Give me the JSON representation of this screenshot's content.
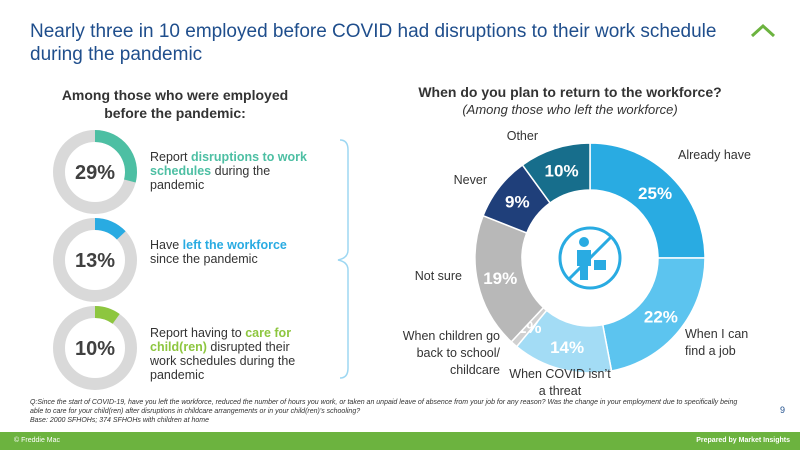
{
  "header": {
    "title": "Nearly three in 10 employed before COVID had disruptions to their work schedule during the pandemic"
  },
  "left_panel": {
    "heading": "Among those who were employed before the pandemic:"
  },
  "chart_data": [
    {
      "type": "donut",
      "values": [
        29
      ],
      "value_labels": [
        "29%"
      ],
      "color": "#4dbfa3",
      "rest_color": "#d9d9d9",
      "caption": {
        "before": "Report ",
        "highlight": "disruptions to work schedules",
        "after": " during the pandemic"
      }
    },
    {
      "type": "donut",
      "values": [
        13
      ],
      "value_labels": [
        "13%"
      ],
      "color": "#29abe2",
      "rest_color": "#d9d9d9",
      "caption": {
        "before": "Have ",
        "highlight": "left the workforce",
        "after": " since the pandemic"
      }
    },
    {
      "type": "donut",
      "values": [
        10
      ],
      "value_labels": [
        "10%"
      ],
      "color": "#8dc63f",
      "rest_color": "#d9d9d9",
      "caption": {
        "before": "Report having to ",
        "highlight": "care for child(ren)",
        "after": " disrupted their work schedules during the pandemic"
      }
    },
    {
      "type": "pie",
      "title": "When do you plan to return to the workforce?",
      "subtitle": "(Among those who left the workforce)",
      "categories": [
        "Already have",
        "When I can find a job",
        "When COVID isn’t a threat",
        "When children go back to school/ childcare",
        "Not sure",
        "Never",
        "Other"
      ],
      "values": [
        25,
        22,
        14,
        1,
        19,
        9,
        10
      ],
      "value_labels": [
        "25%",
        "22%",
        "14%",
        "1%",
        "19%",
        "9%",
        "10%"
      ],
      "colors": [
        "#29abe2",
        "#5cc4ef",
        "#a3dcf5",
        "#d0d0d0",
        "#b8b8b8",
        "#1f3f7a",
        "#176e8c"
      ]
    }
  ],
  "footnote": {
    "question": "Q:Since the start of COVID-19, have you left the workforce, reduced the number of hours you work, or taken an unpaid leave of absence from your job for any reason? Was the change in your employment due to specifically being able to care for your child(ren) after disruptions in childcare arrangements or in your child(ren)'s schooling?",
    "base": "Base: 2000 SFHOHs; 374 SFHOHs with children at home"
  },
  "page_number": "9",
  "footer": {
    "left": "© Freddie Mac",
    "right": "Prepared by Market Insights"
  }
}
